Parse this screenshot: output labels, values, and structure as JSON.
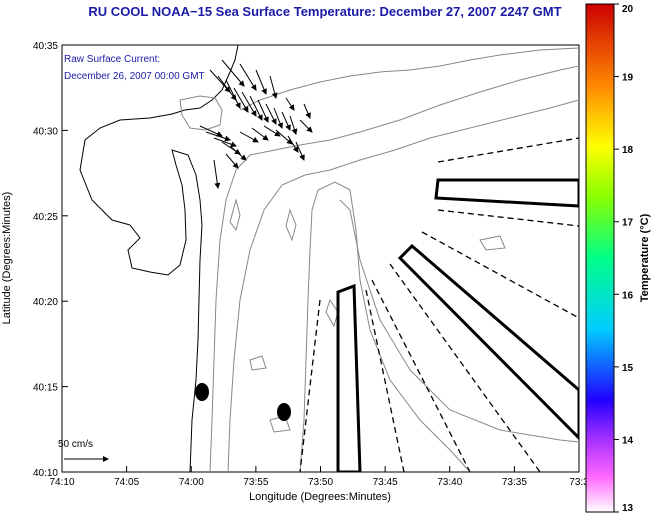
{
  "title": "RU COOL  NOAA−15  Sea Surface Temperature:  December 27, 2007 2247 GMT",
  "current_label": {
    "line1": "Raw Surface Current:",
    "line2": "December 26, 2007 00:00 GMT"
  },
  "axes": {
    "xlabel": "Longitude (Degrees:Minutes)",
    "ylabel": "Latitude (Degrees:Minutes)",
    "x_ticks": [
      "74:10",
      "74:05",
      "74:00",
      "73:55",
      "73:50",
      "73:45",
      "73:40",
      "73:35",
      "73:3"
    ],
    "y_ticks": [
      "40:35",
      "40:30",
      "40:25",
      "40:20",
      "40:15",
      "40:10"
    ]
  },
  "scale_label": "50 cm/s",
  "colorbar": {
    "label": "Temperature (°C)",
    "ticks": [
      "20",
      "19",
      "18",
      "17",
      "16",
      "15",
      "14",
      "13"
    ],
    "min": 13,
    "max": 20
  },
  "colors": {
    "title": "#1a1aa8",
    "contour": "#888888",
    "coast": "#000000"
  }
}
